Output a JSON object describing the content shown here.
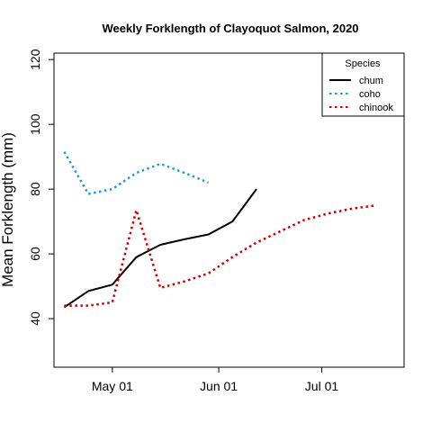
{
  "chart_data": {
    "type": "line",
    "title": "Weekly Forklength of Clayoquot Salmon, 2020",
    "xlabel": "",
    "ylabel": "Mean Forklength (mm)",
    "ylim": [
      25,
      122
    ],
    "xlim": [
      "2020-04-14",
      "2020-07-25"
    ],
    "x_ticks": [
      {
        "date": "2020-05-01",
        "label": "May 01"
      },
      {
        "date": "2020-06-01",
        "label": "Jun 01"
      },
      {
        "date": "2020-07-01",
        "label": "Jul 01"
      }
    ],
    "y_ticks": [
      40,
      60,
      80,
      100,
      120
    ],
    "grid": false,
    "legend": {
      "title": "Species",
      "position": "top-right"
    },
    "series": [
      {
        "name": "chum",
        "color": "#000000",
        "line_style": "solid",
        "points": [
          {
            "x": "2020-04-17",
            "y": 43.5
          },
          {
            "x": "2020-04-24",
            "y": 48.5
          },
          {
            "x": "2020-05-01",
            "y": 50.5
          },
          {
            "x": "2020-05-08",
            "y": 59.0
          },
          {
            "x": "2020-05-15",
            "y": 62.8
          },
          {
            "x": "2020-05-22",
            "y": 64.5
          },
          {
            "x": "2020-05-29",
            "y": 66.0
          },
          {
            "x": "2020-06-05",
            "y": 70.0
          },
          {
            "x": "2020-06-12",
            "y": 80.0
          }
        ]
      },
      {
        "name": "coho",
        "color": "#1f9ad6",
        "line_style": "dotted",
        "points": [
          {
            "x": "2020-04-17",
            "y": 91.5
          },
          {
            "x": "2020-04-24",
            "y": 78.5
          },
          {
            "x": "2020-05-01",
            "y": 80.0
          },
          {
            "x": "2020-05-08",
            "y": 85.0
          },
          {
            "x": "2020-05-15",
            "y": 87.8
          },
          {
            "x": "2020-05-22",
            "y": 85.0
          },
          {
            "x": "2020-05-29",
            "y": 82.0
          }
        ]
      },
      {
        "name": "chinook",
        "color": "#cc0000",
        "line_style": "dotted",
        "points": [
          {
            "x": "2020-04-17",
            "y": 44.0
          },
          {
            "x": "2020-04-24",
            "y": 44.0
          },
          {
            "x": "2020-05-01",
            "y": 45.0
          },
          {
            "x": "2020-05-08",
            "y": 73.5
          },
          {
            "x": "2020-05-15",
            "y": 49.5
          },
          {
            "x": "2020-05-22",
            "y": 51.5
          },
          {
            "x": "2020-05-29",
            "y": 54.0
          },
          {
            "x": "2020-06-05",
            "y": 59.0
          },
          {
            "x": "2020-06-12",
            "y": 63.5
          },
          {
            "x": "2020-06-19",
            "y": 67.0
          },
          {
            "x": "2020-06-26",
            "y": 70.5
          },
          {
            "x": "2020-07-03",
            "y": 72.5
          },
          {
            "x": "2020-07-10",
            "y": 74.0
          },
          {
            "x": "2020-07-17",
            "y": 75.0
          }
        ]
      }
    ]
  }
}
